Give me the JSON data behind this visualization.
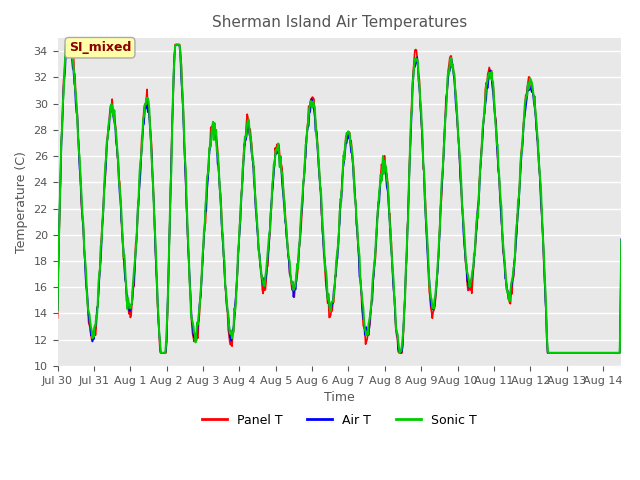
{
  "title": "Sherman Island Air Temperatures",
  "xlabel": "Time",
  "ylabel": "Temperature (C)",
  "ylim": [
    10,
    35
  ],
  "yticks": [
    10,
    12,
    14,
    16,
    18,
    20,
    22,
    24,
    26,
    28,
    30,
    32,
    34
  ],
  "annotation": "SI_mixed",
  "annotation_color": "#8B0000",
  "annotation_bg": "#FFFFAA",
  "bg_color": "#E8E8E8",
  "grid_color": "white",
  "line_colors": {
    "panel": "#FF0000",
    "air": "#0000FF",
    "sonic": "#00CC00"
  },
  "legend_labels": [
    "Panel T",
    "Air T",
    "Sonic T"
  ],
  "xtick_labels": [
    "Jul 30",
    "Jul 31",
    "Aug 1",
    "Aug 2",
    "Aug 3",
    "Aug 4",
    "Aug 5",
    "Aug 6",
    "Aug 7",
    "Aug 8",
    "Aug 9",
    "Aug 10",
    "Aug 11",
    "Aug 12",
    "Aug 13",
    "Aug 14"
  ],
  "num_days": 16,
  "start_day": 0,
  "figsize": [
    6.4,
    4.8
  ],
  "dpi": 100
}
